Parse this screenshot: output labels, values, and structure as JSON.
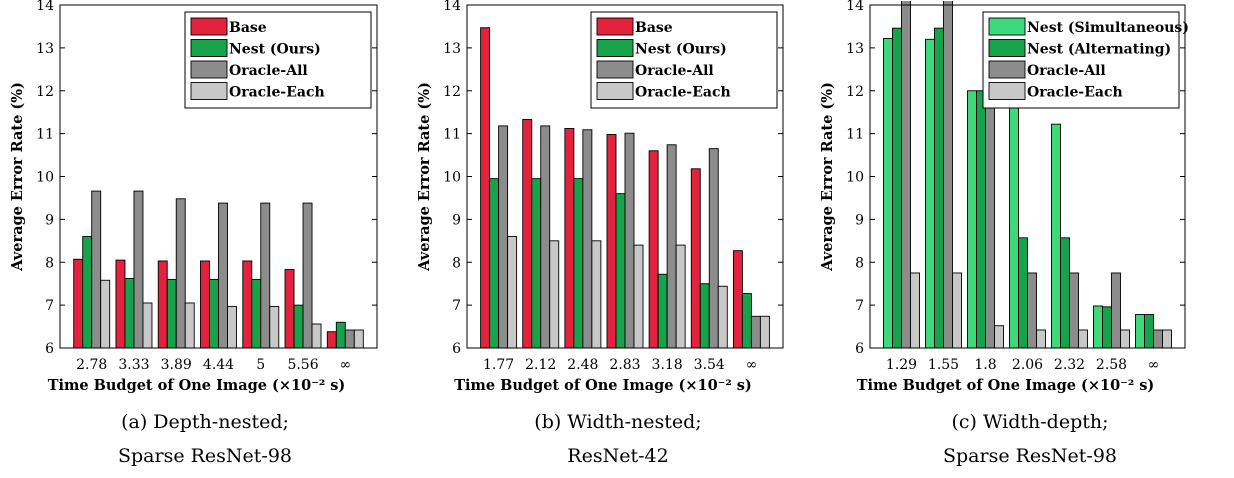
{
  "colors": {
    "Base": "#e3223e",
    "Nest (Ours)": "#18a24c",
    "Nest (Simultaneous)": "#3dd97a",
    "Nest (Alternating)": "#18a24c",
    "Oracle-All": "#8c8c8c",
    "Oracle-Each": "#c8c8c8"
  },
  "chart_data": [
    {
      "type": "bar",
      "xlabel": "Time Budget of One Image (×10⁻² s)",
      "ylabel": "Average Error Rate (%)",
      "ylim": [
        6,
        14
      ],
      "yticks": [
        6,
        7,
        8,
        9,
        10,
        11,
        12,
        13,
        14
      ],
      "categories": [
        "2.78",
        "3.33",
        "3.89",
        "4.44",
        "5",
        "5.56",
        "∞"
      ],
      "series": [
        {
          "name": "Base",
          "values": [
            8.07,
            8.05,
            8.03,
            8.03,
            8.03,
            7.83,
            6.38
          ]
        },
        {
          "name": "Nest (Ours)",
          "values": [
            8.6,
            7.62,
            7.6,
            7.6,
            7.6,
            7.0,
            6.6
          ]
        },
        {
          "name": "Oracle-All",
          "values": [
            9.66,
            9.66,
            9.48,
            9.38,
            9.38,
            9.38,
            6.42
          ]
        },
        {
          "name": "Oracle-Each",
          "values": [
            7.58,
            7.05,
            7.05,
            6.97,
            6.97,
            6.56,
            6.42
          ]
        }
      ],
      "legend": "top-right",
      "caption": [
        "(a) Depth-nested;",
        "Sparse ResNet-98"
      ]
    },
    {
      "type": "bar",
      "xlabel": "Time Budget of One Image (×10⁻² s)",
      "ylabel": "Average Error Rate (%)",
      "ylim": [
        6,
        14
      ],
      "yticks": [
        6,
        7,
        8,
        9,
        10,
        11,
        12,
        13,
        14
      ],
      "categories": [
        "1.77",
        "2.12",
        "2.48",
        "2.83",
        "3.18",
        "3.54",
        "∞"
      ],
      "series": [
        {
          "name": "Base",
          "values": [
            13.47,
            11.33,
            11.12,
            10.98,
            10.6,
            10.18,
            8.27
          ]
        },
        {
          "name": "Nest (Ours)",
          "values": [
            9.95,
            9.95,
            9.95,
            9.6,
            7.72,
            7.5,
            7.27
          ]
        },
        {
          "name": "Oracle-All",
          "values": [
            11.18,
            11.18,
            11.09,
            11.01,
            10.74,
            10.65,
            6.74
          ]
        },
        {
          "name": "Oracle-Each",
          "values": [
            8.6,
            8.5,
            8.5,
            8.4,
            8.4,
            7.44,
            6.74
          ]
        }
      ],
      "legend": "top-right",
      "caption": [
        "(b) Width-nested;",
        "ResNet-42"
      ]
    },
    {
      "type": "bar",
      "xlabel": "Time Budget of One Image (×10⁻² s)",
      "ylabel": "Average Error Rate (%)",
      "ylim": [
        6,
        14
      ],
      "yticks": [
        6,
        7,
        8,
        9,
        10,
        11,
        12,
        13,
        14
      ],
      "categories": [
        "1.29",
        "1.55",
        "1.8",
        "2.06",
        "2.32",
        "2.58",
        "∞"
      ],
      "series": [
        {
          "name": "Nest (Simultaneous)",
          "values": [
            13.22,
            13.2,
            12.0,
            11.9,
            11.22,
            6.98,
            6.78
          ]
        },
        {
          "name": "Nest (Alternating)",
          "values": [
            13.46,
            13.46,
            12.0,
            8.57,
            8.57,
            6.96,
            6.78
          ]
        },
        {
          "name": "Oracle-All",
          "values": [
            14.2,
            14.2,
            12.0,
            7.75,
            7.75,
            7.75,
            6.42
          ]
        },
        {
          "name": "Oracle-Each",
          "values": [
            7.75,
            7.75,
            6.52,
            6.42,
            6.42,
            6.42,
            6.42
          ]
        }
      ],
      "legend": "top-right",
      "caption": [
        "(c) Width-depth;",
        "Sparse ResNet-98"
      ]
    }
  ]
}
